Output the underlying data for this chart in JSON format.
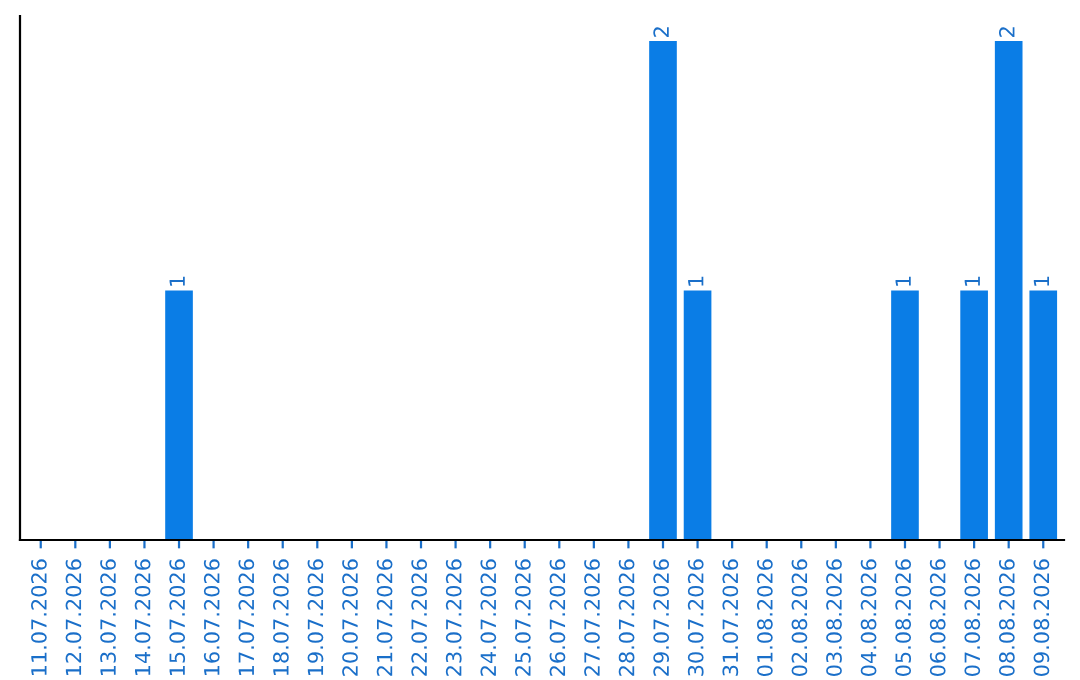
{
  "chart_data": {
    "type": "bar",
    "categories": [
      "11.07.2026",
      "12.07.2026",
      "13.07.2026",
      "14.07.2026",
      "15.07.2026",
      "16.07.2026",
      "17.07.2026",
      "18.07.2026",
      "19.07.2026",
      "20.07.2026",
      "21.07.2026",
      "22.07.2026",
      "23.07.2026",
      "24.07.2026",
      "25.07.2026",
      "26.07.2026",
      "27.07.2026",
      "28.07.2026",
      "29.07.2026",
      "30.07.2026",
      "31.07.2026",
      "01.08.2026",
      "02.08.2026",
      "03.08.2026",
      "04.08.2026",
      "05.08.2026",
      "06.08.2026",
      "07.08.2026",
      "08.08.2026",
      "09.08.2026"
    ],
    "values": [
      0,
      0,
      0,
      0,
      1,
      0,
      0,
      0,
      0,
      0,
      0,
      0,
      0,
      0,
      0,
      0,
      0,
      0,
      2,
      1,
      0,
      0,
      0,
      0,
      0,
      1,
      0,
      1,
      2,
      1
    ],
    "value_labels": [
      null,
      null,
      null,
      null,
      "1",
      null,
      null,
      null,
      null,
      null,
      null,
      null,
      null,
      null,
      null,
      null,
      null,
      null,
      "2",
      "1",
      null,
      null,
      null,
      null,
      null,
      "1",
      null,
      "1",
      "2",
      "1"
    ],
    "color": "#0a7de6",
    "tick_labels": "x",
    "grid": false
  }
}
